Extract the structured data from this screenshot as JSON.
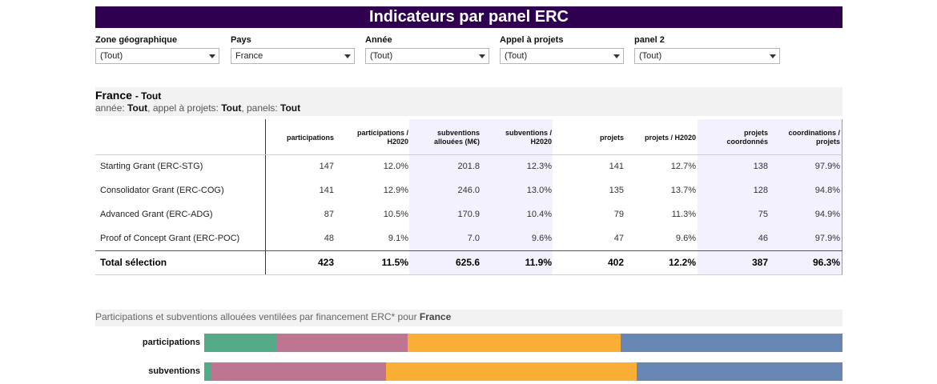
{
  "title": "Indicateurs par panel ERC",
  "filters": [
    {
      "label": "Zone géographique",
      "value": "(Tout)"
    },
    {
      "label": "Pays",
      "value": "France"
    },
    {
      "label": "Année",
      "value": "(Tout)"
    },
    {
      "label": "Appel à projets",
      "value": "(Tout)"
    },
    {
      "label": "panel 2",
      "value": "(Tout)"
    }
  ],
  "summary": {
    "country": "France",
    "suffix": "Tout",
    "line2_prefix": "année: ",
    "annee": "Tout",
    "appel_prefix": ", appel à projets: ",
    "appel": "Tout",
    "panels_prefix": ", panels: ",
    "panels": "Tout"
  },
  "table": {
    "headers": [
      [
        "participations"
      ],
      [
        "participations /",
        "H2020"
      ],
      [
        "subventions",
        "allouées (M€)"
      ],
      [
        "subventions /",
        "H2020"
      ],
      [
        "projets"
      ],
      [
        "projets /  H2020"
      ],
      [
        "projets",
        "coordonnés"
      ],
      [
        "coordinations /",
        "projets"
      ]
    ],
    "rows": [
      {
        "label": "Starting Grant (ERC-STG)",
        "values": [
          "147",
          "12.0%",
          "201.8",
          "12.3%",
          "141",
          "12.7%",
          "138",
          "97.9%"
        ]
      },
      {
        "label": "Consolidator Grant (ERC-COG)",
        "values": [
          "141",
          "12.9%",
          "246.0",
          "13.0%",
          "135",
          "13.7%",
          "128",
          "94.8%"
        ]
      },
      {
        "label": "Advanced Grant (ERC-ADG)",
        "values": [
          "87",
          "10.5%",
          "170.9",
          "10.4%",
          "79",
          "11.3%",
          "75",
          "94.9%"
        ]
      },
      {
        "label": "Proof of Concept Grant (ERC-POC)",
        "values": [
          "48",
          "9.1%",
          "7.0",
          "9.6%",
          "47",
          "9.6%",
          "46",
          "97.9%"
        ]
      }
    ],
    "total": {
      "label": "Total sélection",
      "values": [
        "423",
        "11.5%",
        "625.6",
        "11.9%",
        "402",
        "12.2%",
        "387",
        "96.3%"
      ]
    }
  },
  "chart": {
    "title_prefix": "Participations et subventions allouées ventilées par financement ERC* pour ",
    "title_country": "France",
    "colors": [
      "#55ab87",
      "#bd7592",
      "#fbae36",
      "#6786b4"
    ],
    "bars": [
      {
        "label": "participations",
        "values": [
          48,
          87,
          141,
          147
        ]
      },
      {
        "label": "subventions",
        "values": [
          7.0,
          170.9,
          246.0,
          201.8
        ]
      }
    ]
  }
}
